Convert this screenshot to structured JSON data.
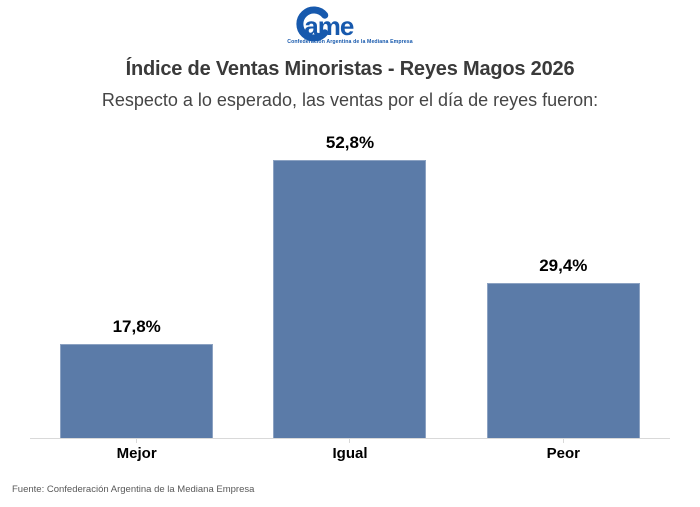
{
  "logo": {
    "brand": "Came",
    "brand_text": "ame",
    "tagline": "Confederación Argentina de la Mediana Empresa",
    "color": "#1759ad"
  },
  "header": {
    "title": "Índice de Ventas Minoristas - Reyes Magos 2026",
    "subtitle": "Respecto a lo esperado, las ventas por el día de reyes fueron:"
  },
  "chart_data": {
    "type": "bar",
    "categories": [
      "Mejor",
      "Igual",
      "Peor"
    ],
    "values": [
      17.8,
      52.8,
      29.4
    ],
    "value_labels": [
      "17,8%",
      "52,8%",
      "29,4%"
    ],
    "title": "Índice de Ventas Minoristas - Reyes Magos 2026",
    "subtitle": "Respecto a lo esperado, las ventas por el día de reyes fueron:",
    "xlabel": "",
    "ylabel": "",
    "ylim": [
      0,
      60
    ],
    "grid": false,
    "legend": false,
    "bar_color": "#5b7ba8",
    "bar_border_color": "#8ca2c2",
    "axis_color": "#d9d9d9",
    "value_label_color": "#000000",
    "category_label_color": "#000000"
  },
  "footer": {
    "source": "Fuente: Confederación Argentina de la Mediana Empresa"
  }
}
